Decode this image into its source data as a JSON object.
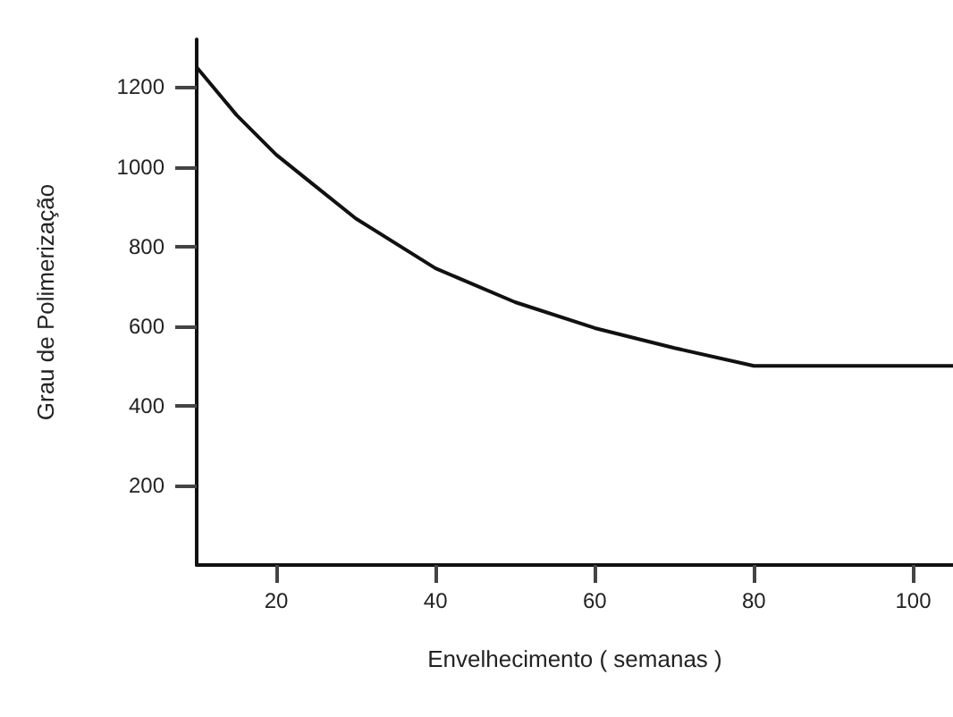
{
  "chart_data": {
    "type": "line",
    "xlabel": "Envelhecimento ( semanas )",
    "ylabel": "Grau de Polimerização",
    "x": [
      10,
      15,
      20,
      25,
      30,
      40,
      50,
      60,
      70,
      80,
      105
    ],
    "series": [
      {
        "color": "#111111",
        "values": [
          1250,
          1130,
          1030,
          950,
          870,
          745,
          660,
          595,
          545,
          500,
          500
        ]
      }
    ],
    "xlim": [
      10,
      105
    ],
    "ylim": [
      0,
      1320
    ],
    "xticks": [
      20,
      40,
      60,
      80,
      100
    ],
    "yticks": [
      200,
      400,
      600,
      800,
      1000,
      1200
    ],
    "grid": false,
    "marker": "none",
    "line_style": "solid"
  }
}
